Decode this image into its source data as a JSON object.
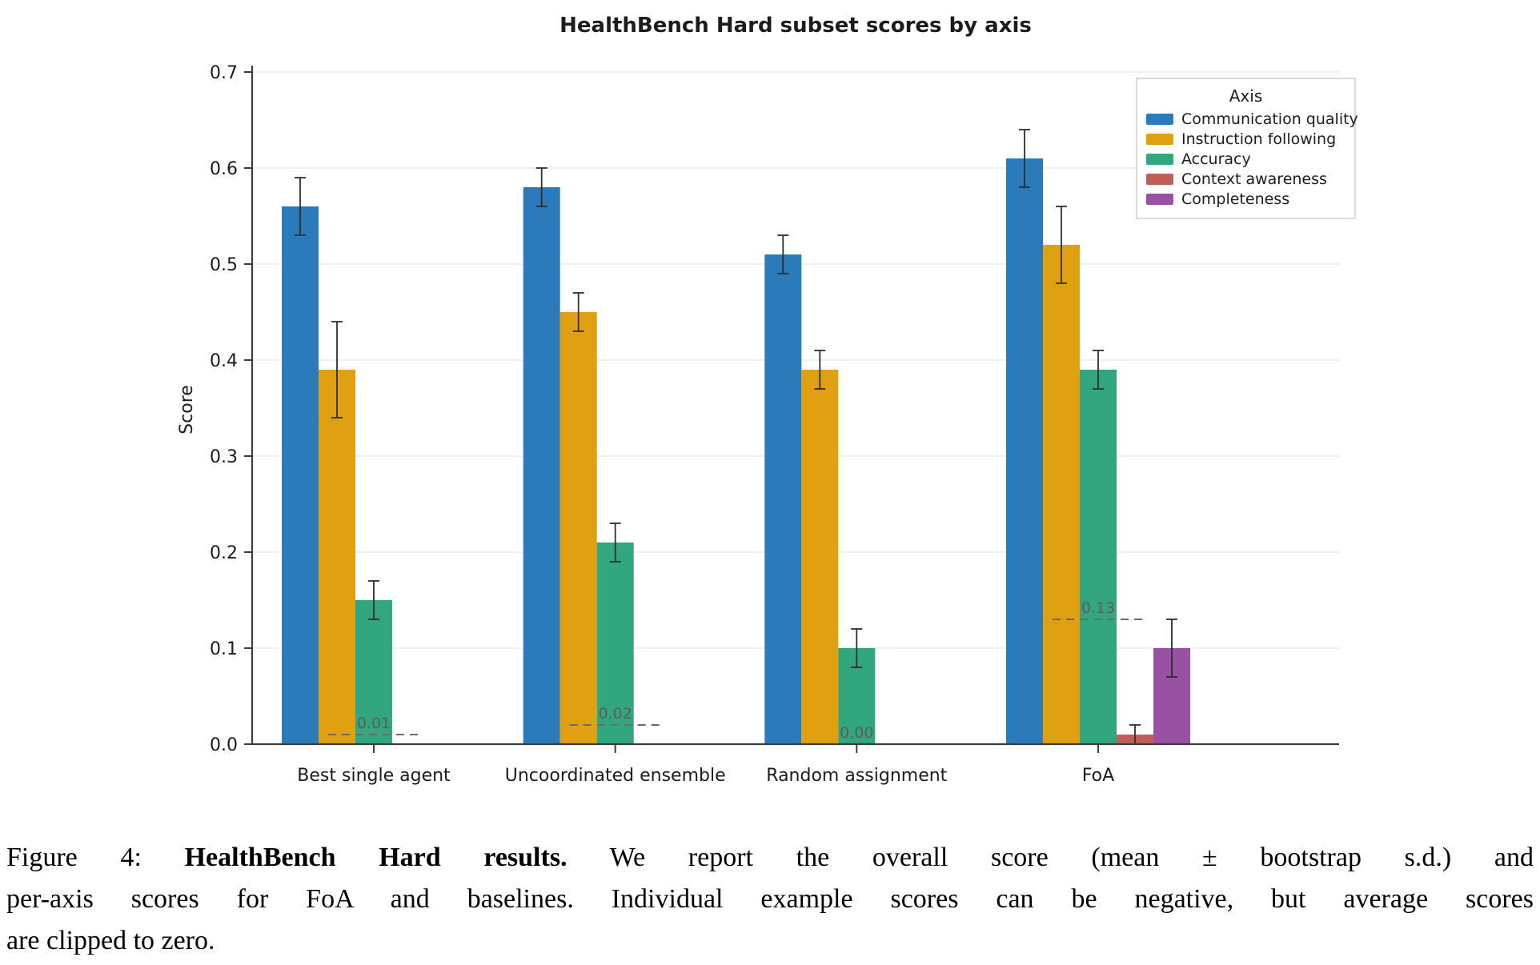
{
  "chart_data": {
    "type": "bar",
    "title": "HealthBench Hard subset scores by axis",
    "xlabel": "",
    "ylabel": "Score",
    "ylim": [
      0.0,
      0.7
    ],
    "yticks": [
      0.0,
      0.1,
      0.2,
      0.3,
      0.4,
      0.5,
      0.6,
      0.7
    ],
    "grid": true,
    "legend_title": "Axis",
    "legend_position": "upper right",
    "categories": [
      "Best single agent",
      "Uncoordinated ensemble",
      "Random assignment",
      "FoA"
    ],
    "series": [
      {
        "name": "Communication quality",
        "color": "#2b7bba",
        "values": [
          0.56,
          0.58,
          0.51,
          0.61
        ],
        "errors": [
          0.03,
          0.02,
          0.02,
          0.03
        ]
      },
      {
        "name": "Instruction following",
        "color": "#dfa112",
        "values": [
          0.39,
          0.45,
          0.39,
          0.52
        ],
        "errors": [
          0.05,
          0.02,
          0.02,
          0.04
        ]
      },
      {
        "name": "Accuracy",
        "color": "#32a67e",
        "values": [
          0.15,
          0.21,
          0.1,
          0.39
        ],
        "errors": [
          0.02,
          0.02,
          0.02,
          0.02
        ]
      },
      {
        "name": "Context awareness",
        "color": "#bf5f58",
        "values": [
          0.0,
          0.0,
          0.0,
          0.01
        ],
        "errors": [
          null,
          null,
          null,
          0.01
        ]
      },
      {
        "name": "Completeness",
        "color": "#9952a3",
        "values": [
          0.0,
          0.0,
          0.0,
          0.1
        ],
        "errors": [
          null,
          null,
          null,
          0.03
        ]
      }
    ],
    "overall_scores": {
      "description": "dashed line per group with label (overall score)",
      "labels": [
        "0.01",
        "0.02",
        "0.00",
        "0.13"
      ],
      "values": [
        0.01,
        0.02,
        0.0,
        0.13
      ]
    },
    "colors": {
      "grid": "#eaeaea",
      "axis": "#3c3c3c",
      "error_bar": "#2e2e2e",
      "dashed_line": "#6b6b6b",
      "annotation_text": "#5d5d5d",
      "legend_border": "#cfcfcf"
    }
  },
  "caption": {
    "lines": [
      {
        "justify": true,
        "parts": [
          {
            "text": "Figure 4: "
          },
          {
            "text": "HealthBench Hard results.",
            "bold": true
          },
          {
            "text": "  We report the overall score (mean ± bootstrap s.d.)  and"
          }
        ]
      },
      {
        "justify": true,
        "parts": [
          {
            "text": "per-axis scores for FoA and baselines. Individual example scores can be negative, but average scores"
          }
        ]
      },
      {
        "justify": false,
        "parts": [
          {
            "text": "are clipped to zero."
          }
        ]
      }
    ]
  }
}
